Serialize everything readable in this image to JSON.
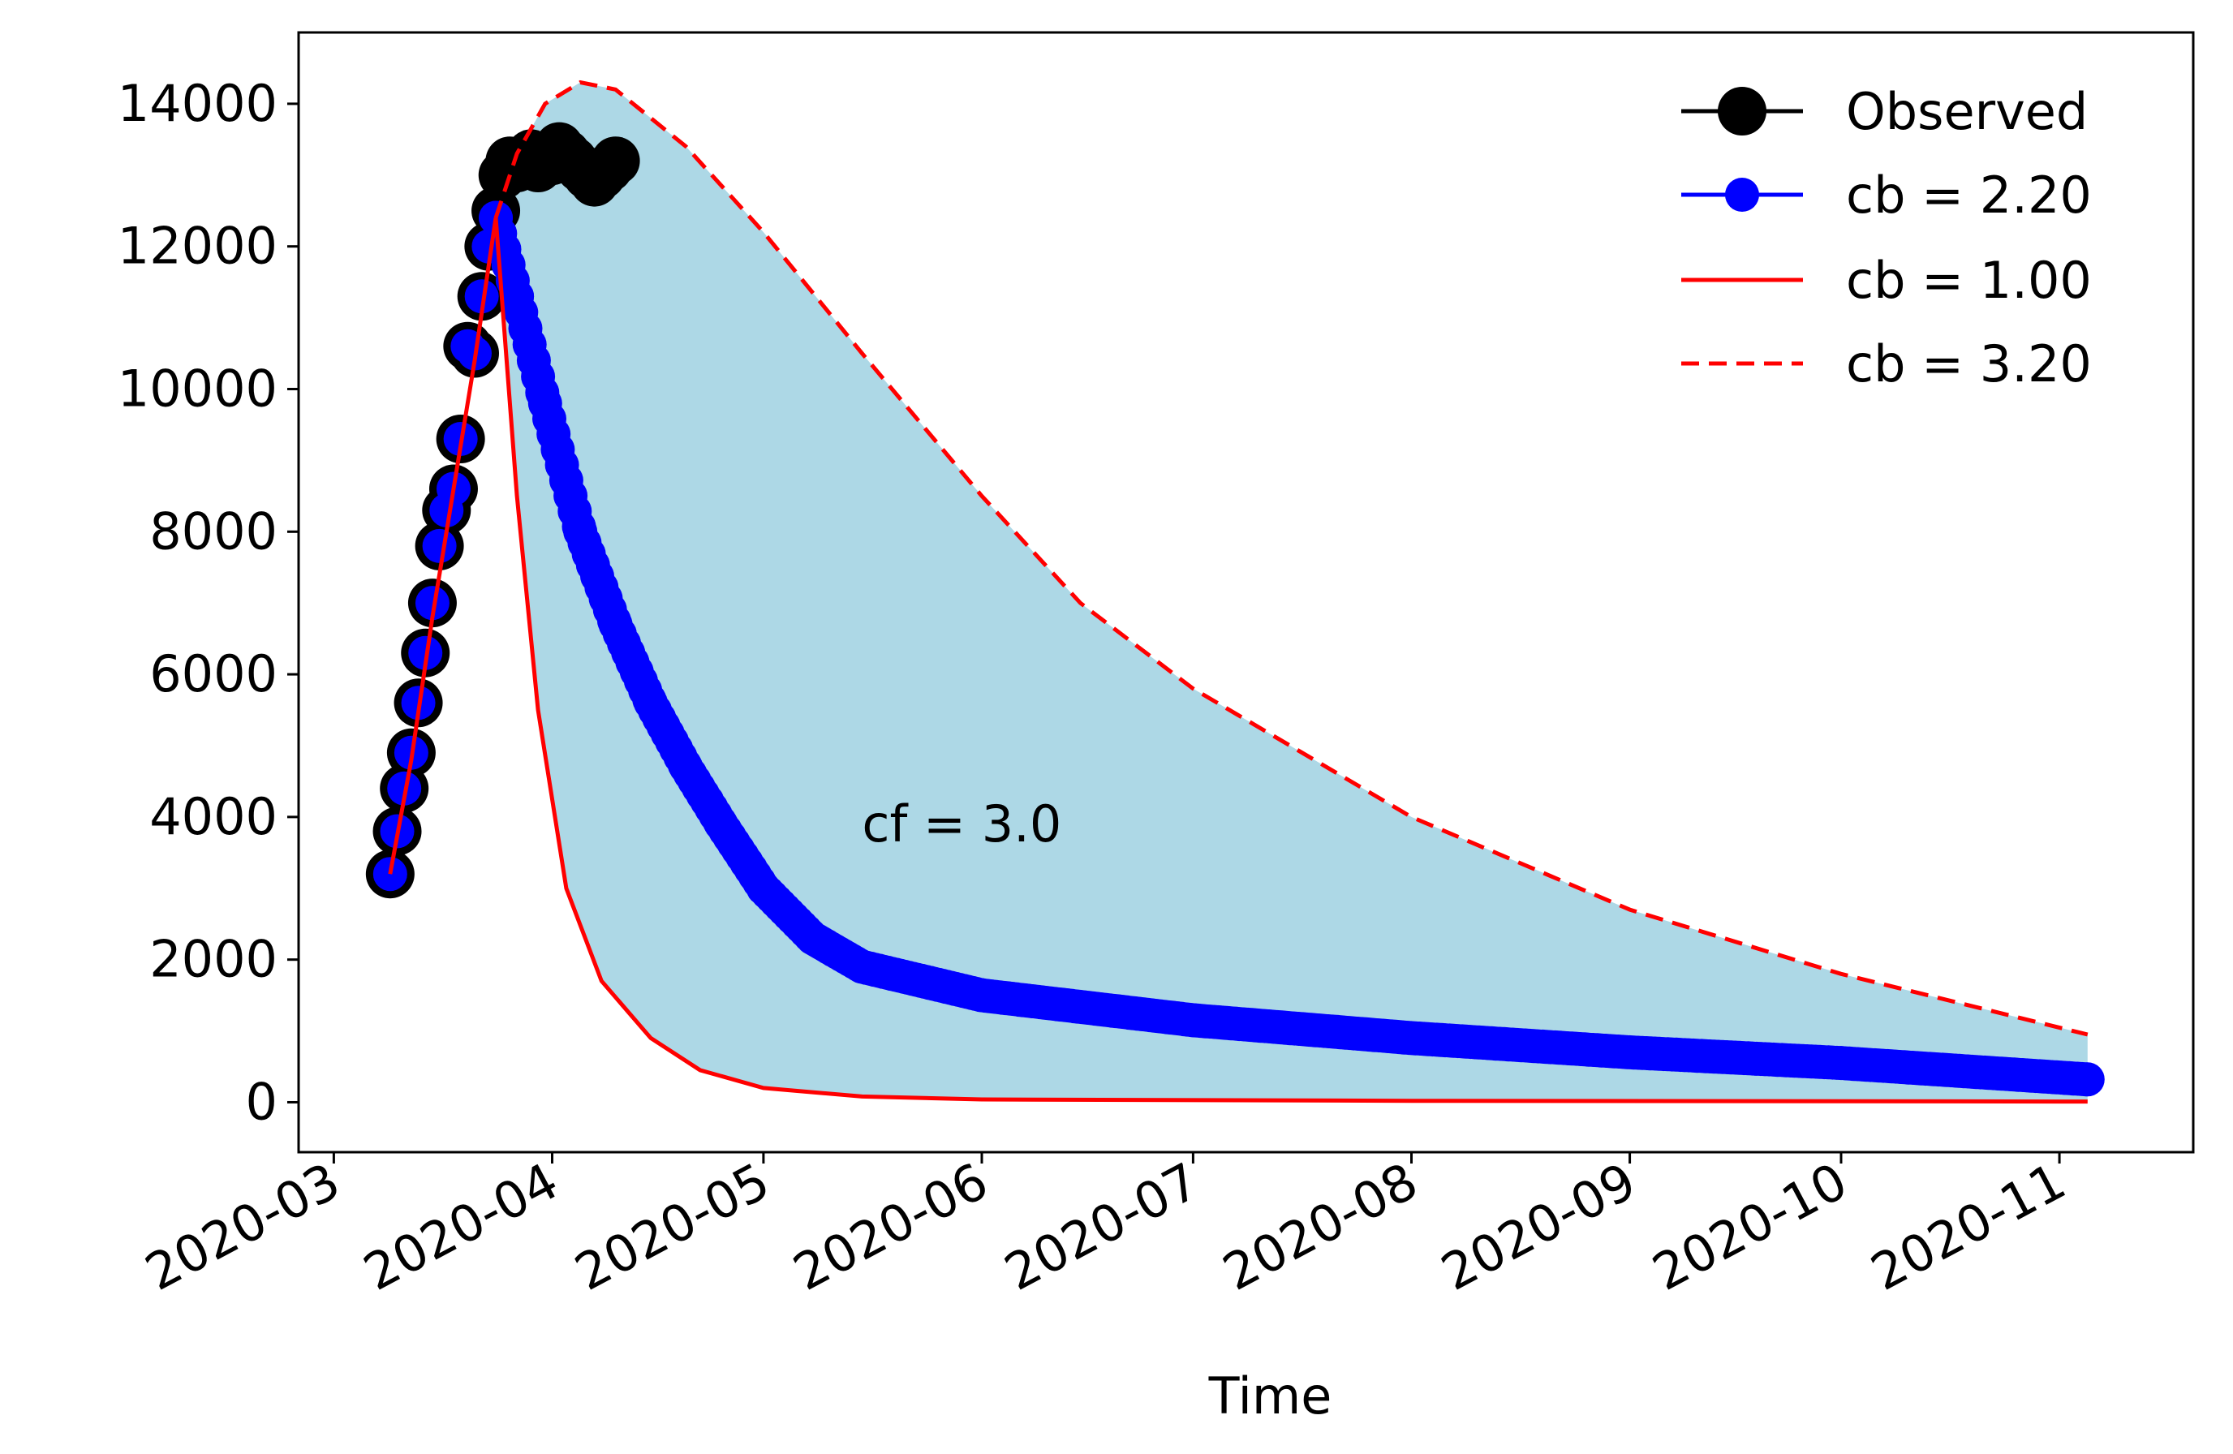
{
  "chart_data": {
    "type": "line",
    "title": "",
    "xlabel": "Time",
    "ylabel": "",
    "x_ticks": [
      "2020-03",
      "2020-04",
      "2020-05",
      "2020-06",
      "2020-07",
      "2020-08",
      "2020-09",
      "2020-10",
      "2020-11"
    ],
    "x_domain": [
      "2020-02-25",
      "2020-11-20"
    ],
    "ylim": [
      -700,
      15000
    ],
    "y_ticks": [
      0,
      2000,
      4000,
      6000,
      8000,
      10000,
      12000,
      14000
    ],
    "annotation": "cf = 3.0",
    "legend_position": "top-right",
    "colors": {
      "observed": "#000000",
      "fit": "#0000ff",
      "band_lower": "#ff0000",
      "band_upper": "#ff0000",
      "fill": "#add8e6"
    },
    "series": [
      {
        "name": "Observed",
        "label": "Observed",
        "style": "black-markers",
        "points": [
          [
            "2020-03-09",
            3200
          ],
          [
            "2020-03-10",
            3800
          ],
          [
            "2020-03-11",
            4400
          ],
          [
            "2020-03-12",
            4900
          ],
          [
            "2020-03-13",
            5600
          ],
          [
            "2020-03-14",
            6300
          ],
          [
            "2020-03-15",
            7000
          ],
          [
            "2020-03-16",
            7800
          ],
          [
            "2020-03-17",
            8300
          ],
          [
            "2020-03-18",
            8600
          ],
          [
            "2020-03-19",
            9300
          ],
          [
            "2020-03-20",
            10600
          ],
          [
            "2020-03-21",
            10500
          ],
          [
            "2020-03-22",
            11300
          ],
          [
            "2020-03-23",
            12000
          ],
          [
            "2020-03-24",
            12500
          ],
          [
            "2020-03-25",
            13000
          ],
          [
            "2020-03-26",
            13200
          ],
          [
            "2020-03-27",
            13100
          ],
          [
            "2020-03-28",
            13200
          ],
          [
            "2020-03-29",
            13300
          ],
          [
            "2020-03-30",
            13100
          ],
          [
            "2020-03-31",
            13200
          ],
          [
            "2020-04-01",
            13200
          ],
          [
            "2020-04-02",
            13400
          ],
          [
            "2020-04-03",
            13300
          ],
          [
            "2020-04-04",
            13200
          ],
          [
            "2020-04-05",
            13100
          ],
          [
            "2020-04-06",
            13000
          ],
          [
            "2020-04-07",
            12900
          ],
          [
            "2020-04-08",
            13000
          ],
          [
            "2020-04-09",
            13100
          ],
          [
            "2020-04-10",
            13200
          ]
        ]
      },
      {
        "name": "cb = 2.20",
        "label": "cb = 2.20",
        "style": "blue-markers",
        "points": [
          [
            "2020-03-09",
            3200
          ],
          [
            "2020-03-10",
            3800
          ],
          [
            "2020-03-11",
            4400
          ],
          [
            "2020-03-12",
            4900
          ],
          [
            "2020-03-13",
            5600
          ],
          [
            "2020-03-14",
            6300
          ],
          [
            "2020-03-15",
            7000
          ],
          [
            "2020-03-16",
            7800
          ],
          [
            "2020-03-17",
            8300
          ],
          [
            "2020-03-18",
            8600
          ],
          [
            "2020-03-19",
            9300
          ],
          [
            "2020-03-20",
            10600
          ],
          [
            "2020-03-21",
            10500
          ],
          [
            "2020-03-22",
            11300
          ],
          [
            "2020-03-23",
            12000
          ],
          [
            "2020-03-24",
            12400
          ],
          [
            "2020-03-27",
            11300
          ],
          [
            "2020-03-31",
            9800
          ],
          [
            "2020-04-05",
            8000
          ],
          [
            "2020-04-10",
            6700
          ],
          [
            "2020-04-15",
            5600
          ],
          [
            "2020-04-20",
            4700
          ],
          [
            "2020-04-25",
            3900
          ],
          [
            "2020-05-01",
            3000
          ],
          [
            "2020-05-08",
            2300
          ],
          [
            "2020-05-15",
            1900
          ],
          [
            "2020-06-01",
            1500
          ],
          [
            "2020-07-01",
            1150
          ],
          [
            "2020-08-01",
            900
          ],
          [
            "2020-09-01",
            700
          ],
          [
            "2020-10-01",
            550
          ],
          [
            "2020-11-05",
            320
          ]
        ]
      },
      {
        "name": "cb = 1.00",
        "label": " cb = 1.00",
        "style": "red-solid",
        "points": [
          [
            "2020-03-09",
            3200
          ],
          [
            "2020-03-12",
            4800
          ],
          [
            "2020-03-15",
            6800
          ],
          [
            "2020-03-18",
            8600
          ],
          [
            "2020-03-21",
            10400
          ],
          [
            "2020-03-24",
            12400
          ],
          [
            "2020-03-27",
            8500
          ],
          [
            "2020-03-30",
            5500
          ],
          [
            "2020-04-03",
            3000
          ],
          [
            "2020-04-08",
            1700
          ],
          [
            "2020-04-15",
            900
          ],
          [
            "2020-04-22",
            450
          ],
          [
            "2020-05-01",
            200
          ],
          [
            "2020-05-15",
            80
          ],
          [
            "2020-06-01",
            40
          ],
          [
            "2020-08-01",
            20
          ],
          [
            "2020-11-05",
            10
          ]
        ]
      },
      {
        "name": "cb = 3.20",
        "label": " cb = 3.20",
        "style": "red-dashed",
        "points": [
          [
            "2020-03-24",
            12400
          ],
          [
            "2020-03-27",
            13300
          ],
          [
            "2020-03-31",
            14000
          ],
          [
            "2020-04-05",
            14300
          ],
          [
            "2020-04-10",
            14200
          ],
          [
            "2020-04-20",
            13400
          ],
          [
            "2020-05-01",
            12200
          ],
          [
            "2020-05-15",
            10500
          ],
          [
            "2020-06-01",
            8500
          ],
          [
            "2020-06-15",
            7000
          ],
          [
            "2020-07-01",
            5800
          ],
          [
            "2020-08-01",
            4000
          ],
          [
            "2020-09-01",
            2700
          ],
          [
            "2020-10-01",
            1800
          ],
          [
            "2020-11-05",
            950
          ]
        ]
      }
    ]
  }
}
